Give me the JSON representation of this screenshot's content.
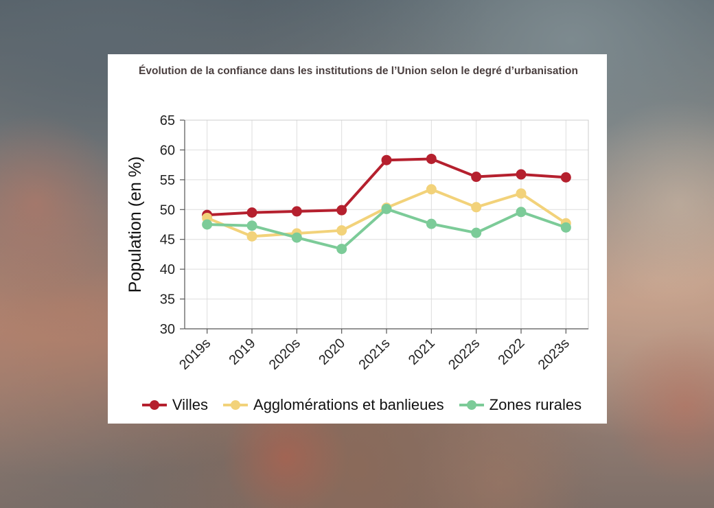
{
  "chart_data": {
    "type": "line",
    "title": "Évolution de la confiance dans les institutions de l’Union selon le degré d’urbanisation",
    "ylabel": "Population (en %)",
    "xlabel": "",
    "categories": [
      "2019s",
      "2019",
      "2020s",
      "2020",
      "2021s",
      "2021",
      "2022s",
      "2022",
      "2023s"
    ],
    "yticks": [
      "30",
      "35",
      "40",
      "45",
      "50",
      "55",
      "60",
      "65"
    ],
    "ylim": [
      30,
      65
    ],
    "grid": true,
    "legend_position": "bottom",
    "series": [
      {
        "name": "Villes",
        "color": "#b5202e",
        "values": [
          49.1,
          49.5,
          49.7,
          49.9,
          58.3,
          58.5,
          55.5,
          55.9,
          55.4
        ]
      },
      {
        "name": "Agglomérations et banlieues",
        "color": "#f2d27a",
        "values": [
          48.6,
          45.5,
          46.0,
          46.5,
          50.3,
          53.4,
          50.4,
          52.7,
          47.7
        ]
      },
      {
        "name": "Zones rurales",
        "color": "#7ccb98",
        "values": [
          47.5,
          47.3,
          45.3,
          43.4,
          50.1,
          47.6,
          46.1,
          49.6,
          47.0
        ]
      }
    ]
  }
}
